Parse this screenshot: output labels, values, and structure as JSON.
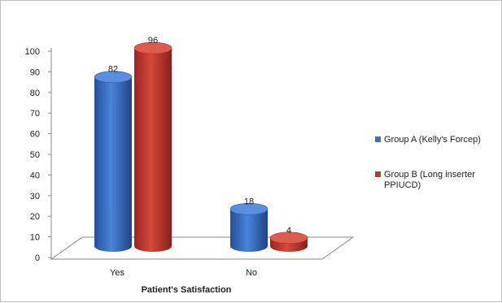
{
  "chart_data": {
    "type": "bar",
    "categories": [
      "Yes",
      "No"
    ],
    "series": [
      {
        "name": "Group A (Kelly's Forcep)",
        "values": [
          82,
          18
        ],
        "color": "#3c6fc4"
      },
      {
        "name": "Group B (Long inserter PPIUCD)",
        "values": [
          96,
          4
        ],
        "color": "#c0392b"
      }
    ],
    "xlabel": "Patient's Satisfaction",
    "ylabel": "",
    "ylim": [
      0,
      100
    ],
    "yticks": [
      0,
      10,
      20,
      30,
      40,
      50,
      60,
      70,
      80,
      90,
      100
    ],
    "grid": false,
    "style": "3d-cylinder",
    "legend_position": "right"
  },
  "legend": {
    "item_a_label": "Group A (Kelly's Forcep)",
    "item_b_line1": "Group B (Long inserter",
    "item_b_line2": "PPIUCD)"
  }
}
